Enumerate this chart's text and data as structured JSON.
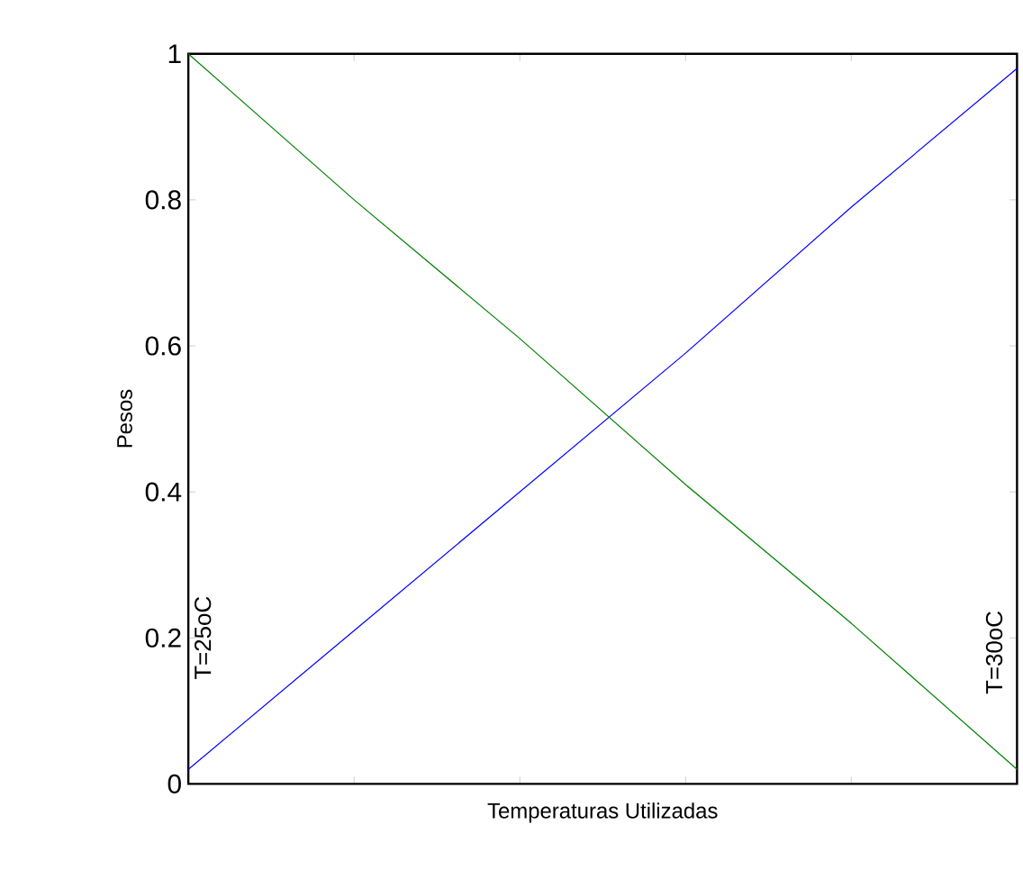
{
  "chart_data": {
    "type": "line",
    "xlabel": "Temperaturas Utilizadas",
    "ylabel": "Pesos",
    "categories": [
      null,
      null,
      null,
      null,
      null,
      null
    ],
    "series": [
      {
        "color": "#0000ff",
        "values": [
          0.02,
          0.21,
          0.4,
          0.59,
          0.79,
          0.98
        ]
      },
      {
        "color": "#008000",
        "values": [
          1.0,
          0.8,
          0.61,
          0.41,
          0.22,
          0.02
        ]
      }
    ],
    "ylim": [
      0,
      1
    ],
    "yticks": [
      0,
      0.2,
      0.4,
      0.6,
      0.8,
      1
    ],
    "annotations": [
      "T=25oC",
      "T=30oC"
    ],
    "grid": false,
    "marker": "none",
    "line_style": "solid"
  }
}
